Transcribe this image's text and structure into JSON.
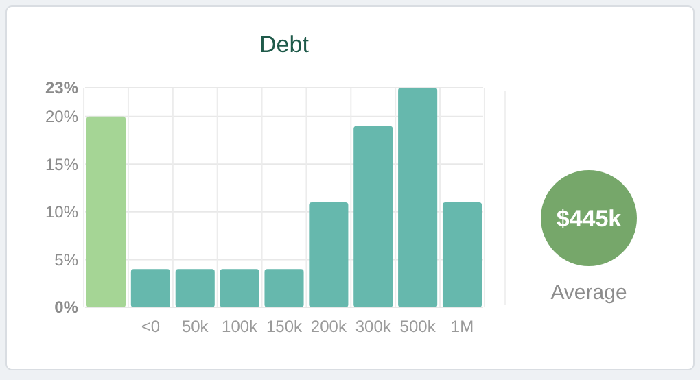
{
  "chart_data": {
    "type": "bar",
    "title": "Debt",
    "categories": [
      null,
      "<0",
      "50k",
      "100k",
      "150k",
      "200k",
      "300k",
      "500k",
      "1M"
    ],
    "values": [
      20,
      4,
      4,
      4,
      4,
      11,
      19,
      23,
      11
    ],
    "colors": [
      "#a5d595",
      "#66b8ad",
      "#66b8ad",
      "#66b8ad",
      "#66b8ad",
      "#66b8ad",
      "#66b8ad",
      "#66b8ad",
      "#66b8ad"
    ],
    "ylim": [
      0,
      23
    ],
    "yticks": [
      {
        "value": 0,
        "label": "0%"
      },
      {
        "value": 5,
        "label": "5%"
      },
      {
        "value": 10,
        "label": "10%"
      },
      {
        "value": 15,
        "label": "15%"
      },
      {
        "value": 20,
        "label": "20%"
      },
      {
        "value": 23,
        "label": "23%"
      }
    ],
    "grid": true,
    "annotations": [
      "$445k",
      "Average"
    ]
  }
}
